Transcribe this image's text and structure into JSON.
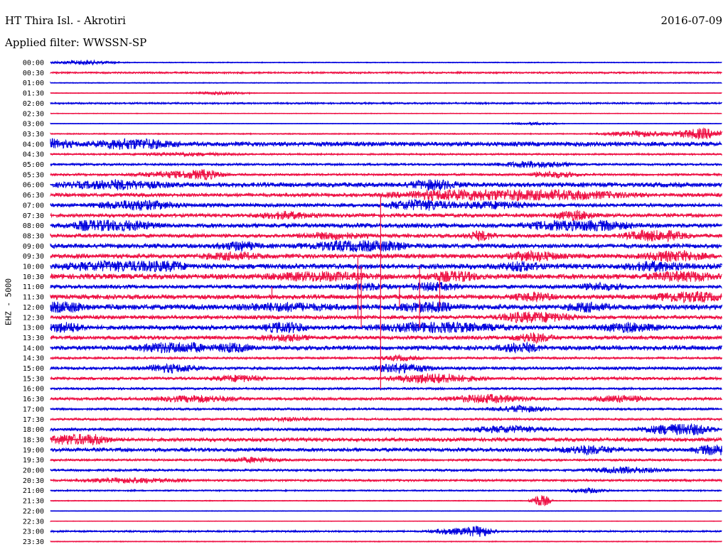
{
  "header": {
    "station": "HT Thira Isl. - Akrotiri",
    "date": "2016-07-09",
    "filter": "Applied filter: WWSSN-SP"
  },
  "channel_label": "EHZ - 5000",
  "colors": {
    "even_trace": "#0000dd",
    "odd_trace": "#ee1144"
  },
  "chart_data": {
    "type": "line",
    "title": "HT Thira Isl. - Akrotiri",
    "xlabel": "",
    "ylabel": "EHZ - 5000",
    "grid": false,
    "legend": "none",
    "row_labels": [
      "00:00",
      "00:30",
      "01:00",
      "01:30",
      "02:00",
      "02:30",
      "03:00",
      "03:30",
      "04:00",
      "04:30",
      "05:00",
      "05:30",
      "06:00",
      "06:30",
      "07:00",
      "07:30",
      "08:00",
      "08:30",
      "09:00",
      "09:30",
      "10:00",
      "10:30",
      "11:00",
      "11:30",
      "12:00",
      "12:30",
      "13:00",
      "13:30",
      "14:00",
      "14:30",
      "15:00",
      "15:30",
      "16:00",
      "16:30",
      "17:00",
      "17:30",
      "18:00",
      "18:30",
      "19:00",
      "19:30",
      "20:00",
      "20:30",
      "21:00",
      "21:30",
      "22:00",
      "22:30",
      "23:00",
      "23:30"
    ],
    "series": [
      {
        "noise": 0.6,
        "events": [
          [
            0.05,
            0.07,
            3
          ]
        ]
      },
      {
        "noise": 1.2,
        "events": []
      },
      {
        "noise": 0.6,
        "events": []
      },
      {
        "noise": 0.5,
        "events": [
          [
            0.25,
            0.06,
            2
          ]
        ]
      },
      {
        "noise": 1.2,
        "events": []
      },
      {
        "noise": 0.5,
        "events": []
      },
      {
        "noise": 0.4,
        "events": [
          [
            0.72,
            0.05,
            2
          ]
        ]
      },
      {
        "noise": 0.8,
        "events": [
          [
            0.88,
            0.08,
            4
          ],
          [
            0.97,
            0.05,
            8
          ]
        ]
      },
      {
        "noise": 3,
        "events": [
          [
            0.0,
            0.05,
            5
          ],
          [
            0.1,
            0.06,
            4
          ],
          [
            0.14,
            0.06,
            5
          ]
        ]
      },
      {
        "noise": 1.2,
        "events": [
          [
            0.2,
            0.1,
            2
          ]
        ]
      },
      {
        "noise": 1.5,
        "events": [
          [
            0.72,
            0.08,
            4
          ]
        ]
      },
      {
        "noise": 1.5,
        "events": [
          [
            0.18,
            0.08,
            4
          ],
          [
            0.23,
            0.04,
            5
          ],
          [
            0.75,
            0.05,
            4
          ]
        ]
      },
      {
        "noise": 3,
        "events": [
          [
            0.1,
            0.1,
            5
          ],
          [
            0.57,
            0.05,
            6
          ]
        ]
      },
      {
        "noise": 2.5,
        "events": [
          [
            0.57,
            0.1,
            4
          ],
          [
            0.66,
            0.12,
            6
          ],
          [
            0.78,
            0.12,
            5
          ]
        ]
      },
      {
        "noise": 2.5,
        "events": [
          [
            0.13,
            0.08,
            6
          ],
          [
            0.55,
            0.06,
            8
          ],
          [
            0.66,
            0.08,
            4
          ]
        ]
      },
      {
        "noise": 2.5,
        "events": [
          [
            0.35,
            0.06,
            4
          ],
          [
            0.78,
            0.04,
            6
          ]
        ]
      },
      {
        "noise": 3,
        "events": [
          [
            0.06,
            0.04,
            7
          ],
          [
            0.11,
            0.06,
            6
          ],
          [
            0.75,
            0.06,
            5
          ],
          [
            0.82,
            0.06,
            6
          ]
        ]
      },
      {
        "noise": 2.5,
        "events": [
          [
            0.42,
            0.06,
            4
          ],
          [
            0.64,
            0.03,
            6
          ],
          [
            0.9,
            0.06,
            8
          ]
        ]
      },
      {
        "noise": 3,
        "events": [
          [
            0.28,
            0.04,
            5
          ],
          [
            0.44,
            0.08,
            6
          ],
          [
            0.5,
            0.04,
            7
          ]
        ]
      },
      {
        "noise": 3,
        "events": [
          [
            0.27,
            0.06,
            4
          ],
          [
            0.72,
            0.05,
            6
          ],
          [
            0.93,
            0.06,
            7
          ]
        ]
      },
      {
        "noise": 3.5,
        "events": [
          [
            0.1,
            0.1,
            6
          ],
          [
            0.17,
            0.04,
            7
          ],
          [
            0.7,
            0.04,
            5
          ],
          [
            0.9,
            0.06,
            5
          ]
        ]
      },
      {
        "noise": 3.5,
        "events": [
          [
            0.4,
            0.1,
            5
          ],
          [
            0.6,
            0.05,
            6
          ],
          [
            0.94,
            0.06,
            7
          ]
        ]
      },
      {
        "noise": 2.5,
        "events": [
          [
            0.47,
            0.05,
            4
          ],
          [
            0.57,
            0.05,
            5
          ],
          [
            0.82,
            0.05,
            4
          ]
        ]
      },
      {
        "noise": 3,
        "events": [
          [
            0.72,
            0.04,
            5
          ],
          [
            0.95,
            0.06,
            8
          ]
        ]
      },
      {
        "noise": 3.5,
        "events": [
          [
            0.02,
            0.04,
            7
          ],
          [
            0.35,
            0.1,
            4
          ],
          [
            0.56,
            0.06,
            6
          ],
          [
            0.8,
            0.04,
            5
          ]
        ]
      },
      {
        "noise": 2.5,
        "events": [
          [
            0.7,
            0.05,
            5
          ],
          [
            0.74,
            0.06,
            5
          ]
        ]
      },
      {
        "noise": 3,
        "events": [
          [
            0.02,
            0.04,
            6
          ],
          [
            0.35,
            0.04,
            8
          ],
          [
            0.58,
            0.12,
            6
          ],
          [
            0.86,
            0.06,
            5
          ]
        ]
      },
      {
        "noise": 2.5,
        "events": [
          [
            0.35,
            0.05,
            4
          ],
          [
            0.72,
            0.04,
            6
          ]
        ]
      },
      {
        "noise": 3,
        "events": [
          [
            0.17,
            0.05,
            6
          ],
          [
            0.2,
            0.04,
            7
          ],
          [
            0.27,
            0.04,
            5
          ],
          [
            0.7,
            0.04,
            6
          ]
        ]
      },
      {
        "noise": 1.5,
        "events": [
          [
            0.52,
            0.04,
            3
          ]
        ]
      },
      {
        "noise": 2,
        "events": [
          [
            0.18,
            0.06,
            5
          ],
          [
            0.52,
            0.06,
            6
          ]
        ]
      },
      {
        "noise": 2,
        "events": [
          [
            0.28,
            0.05,
            4
          ],
          [
            0.55,
            0.06,
            5
          ],
          [
            0.6,
            0.06,
            4
          ]
        ]
      },
      {
        "noise": 1.5,
        "events": []
      },
      {
        "noise": 2,
        "events": [
          [
            0.22,
            0.08,
            4
          ],
          [
            0.65,
            0.08,
            5
          ],
          [
            0.85,
            0.06,
            4
          ]
        ]
      },
      {
        "noise": 1.5,
        "events": [
          [
            0.7,
            0.06,
            4
          ]
        ]
      },
      {
        "noise": 1.5,
        "events": [
          [
            0.35,
            0.08,
            2
          ]
        ]
      },
      {
        "noise": 2,
        "events": [
          [
            0.68,
            0.08,
            4
          ],
          [
            0.92,
            0.06,
            6
          ],
          [
            0.96,
            0.04,
            5
          ]
        ]
      },
      {
        "noise": 2.5,
        "events": [
          [
            0.04,
            0.05,
            6
          ],
          [
            0.05,
            0.06,
            4
          ]
        ]
      },
      {
        "noise": 2.5,
        "events": [
          [
            0.8,
            0.06,
            5
          ],
          [
            0.99,
            0.04,
            7
          ]
        ]
      },
      {
        "noise": 1.5,
        "events": [
          [
            0.3,
            0.06,
            3
          ]
        ]
      },
      {
        "noise": 1.5,
        "events": [
          [
            0.86,
            0.08,
            4
          ]
        ]
      },
      {
        "noise": 1.5,
        "events": [
          [
            0.12,
            0.1,
            3
          ]
        ]
      },
      {
        "noise": 1,
        "events": [
          [
            0.8,
            0.04,
            3
          ]
        ]
      },
      {
        "noise": 0.6,
        "events": [
          [
            0.73,
            0.02,
            10
          ]
        ]
      },
      {
        "noise": 0.4,
        "events": []
      },
      {
        "noise": 0.4,
        "events": []
      },
      {
        "noise": 1.2,
        "events": [
          [
            0.6,
            0.05,
            4
          ],
          [
            0.64,
            0.03,
            7
          ]
        ]
      },
      {
        "noise": 0.6,
        "events": []
      }
    ],
    "spikes": [
      {
        "x": 0.492,
        "rows": [
          13,
          32
        ]
      },
      {
        "x": 0.458,
        "rows": [
          19,
          25
        ]
      },
      {
        "x": 0.463,
        "rows": [
          20,
          26
        ]
      },
      {
        "x": 0.52,
        "rows": [
          22,
          24
        ]
      },
      {
        "x": 0.55,
        "rows": [
          20,
          26
        ]
      },
      {
        "x": 0.58,
        "rows": [
          21,
          24
        ]
      },
      {
        "x": 0.33,
        "rows": [
          22,
          23
        ]
      }
    ]
  }
}
